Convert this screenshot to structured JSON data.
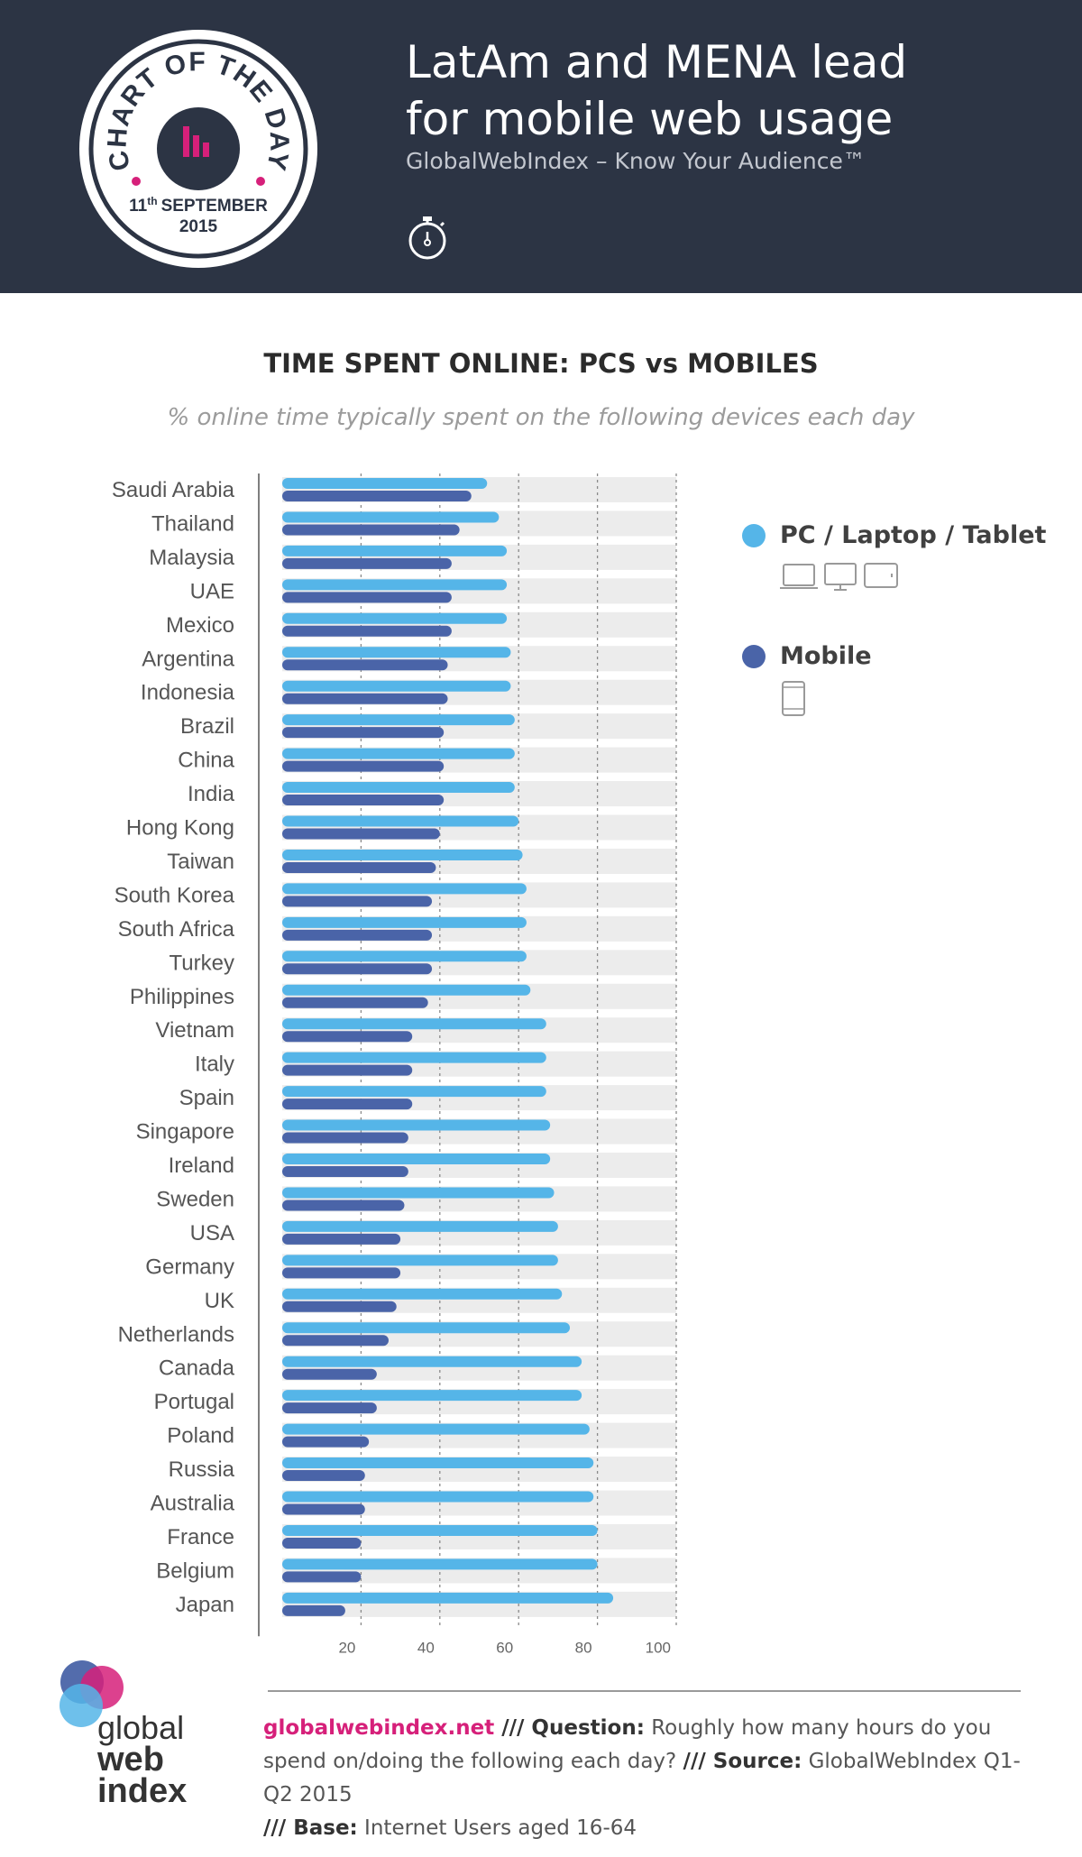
{
  "header": {
    "title_line1": "LatAm and MENA lead",
    "title_line2": "for mobile web usage",
    "subtitle": "GlobalWebIndex – Know Your Audience™",
    "badge_top": "CHART OF THE DAY",
    "badge_date_day": "11",
    "badge_date_suffix": "th",
    "badge_date_month": "SEPTEMBER",
    "badge_date_year": "2015",
    "icon": "stopwatch-icon",
    "colors": {
      "background": "#2c3444",
      "accent": "#d6207a"
    }
  },
  "chart_data": {
    "type": "bar",
    "orientation": "horizontal",
    "title": "TIME SPENT ONLINE: PCS vs MOBILES",
    "subtitle": "% online time typically spent on the following devices each day",
    "categories": [
      "Saudi Arabia",
      "Thailand",
      "Malaysia",
      "UAE",
      "Mexico",
      "Argentina",
      "Indonesia",
      "Brazil",
      "China",
      "India",
      "Hong Kong",
      "Taiwan",
      "South Korea",
      "South Africa",
      "Turkey",
      "Philippines",
      "Vietnam",
      "Italy",
      "Spain",
      "Singapore",
      "Ireland",
      "Sweden",
      "USA",
      "Germany",
      "UK",
      "Netherlands",
      "Canada",
      "Portugal",
      "Poland",
      "Russia",
      "Australia",
      "France",
      "Belgium",
      "Japan"
    ],
    "series": [
      {
        "name": "PC / Laptop / Tablet",
        "color": "#55b5e8",
        "icons": [
          "laptop-icon",
          "desktop-icon",
          "tablet-icon"
        ],
        "values": [
          52,
          55,
          57,
          57,
          57,
          58,
          58,
          59,
          59,
          59,
          60,
          61,
          62,
          62,
          62,
          63,
          67,
          67,
          67,
          68,
          68,
          69,
          70,
          70,
          71,
          73,
          76,
          76,
          78,
          79,
          79,
          80,
          80,
          84
        ]
      },
      {
        "name": "Mobile",
        "color": "#4a64a8",
        "icons": [
          "phone-icon"
        ],
        "values": [
          48,
          45,
          43,
          43,
          43,
          42,
          42,
          41,
          41,
          41,
          40,
          39,
          38,
          38,
          38,
          37,
          33,
          33,
          33,
          32,
          32,
          31,
          30,
          30,
          29,
          27,
          24,
          24,
          22,
          21,
          21,
          20,
          20,
          16
        ]
      }
    ],
    "xticks": [
      20,
      40,
      60,
      80,
      100
    ],
    "xlim": [
      0,
      100
    ],
    "legend": "right",
    "grid": true
  },
  "footer": {
    "site": "globalwebindex.net",
    "sep1": " /// ",
    "q_label": "Question:",
    "q_text": " Roughly how many hours do you spend on/doing the following each day? ",
    "s_label": "/// Source:",
    "s_text": " GlobalWebIndex Q1-Q2 2015",
    "b_label": "/// Base:",
    "b_text": " Internet Users aged 16-64"
  },
  "logo": {
    "line1": "global",
    "line2": "web",
    "line3": "index"
  }
}
